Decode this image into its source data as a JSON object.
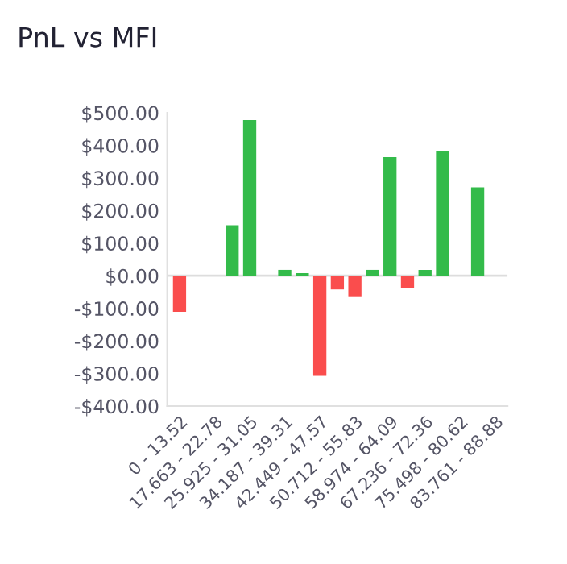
{
  "chart_data": {
    "type": "bar",
    "title": "PnL vs MFI",
    "categories": [
      "0 - 13.52",
      null,
      "17.663 - 22.78",
      null,
      "25.925 - 31.05",
      null,
      "34.187 - 39.31",
      null,
      "42.449 - 47.57",
      null,
      "50.712 - 55.83",
      null,
      "58.974 - 64.09",
      null,
      "67.236 - 72.36",
      null,
      "75.498 - 80.62",
      null,
      "83.761 - 88.88"
    ],
    "values": [
      -111,
      null,
      null,
      155,
      478,
      null,
      18,
      8,
      -307,
      -42,
      -63,
      18,
      364,
      -38,
      18,
      384,
      null,
      271,
      null
    ],
    "colors": [
      "#fa4d4d",
      "#33bb4a",
      "#33bb4a",
      "#33bb4a",
      "#33bb4a",
      "#33bb4a",
      "#33bb4a",
      "#33bb4a",
      "#fa4d4d",
      "#fa4d4d",
      "#fa4d4d",
      "#33bb4a",
      "#33bb4a",
      "#fa4d4d",
      "#33bb4a",
      "#33bb4a",
      "#33bb4a",
      "#33bb4a",
      "#33bb4a"
    ],
    "ylim": [
      -400,
      500
    ],
    "yticks": [
      {
        "value": 500,
        "label": "$500.00"
      },
      {
        "value": 400,
        "label": "$400.00"
      },
      {
        "value": 300,
        "label": "$300.00"
      },
      {
        "value": 200,
        "label": "$200.00"
      },
      {
        "value": 100,
        "label": "$100.00"
      },
      {
        "value": 0,
        "label": "$0.00"
      },
      {
        "value": -100,
        "label": "-$100.00"
      },
      {
        "value": -200,
        "label": "-$200.00"
      },
      {
        "value": -300,
        "label": "-$300.00"
      },
      {
        "value": -400,
        "label": "-$400.00"
      }
    ],
    "ref_lines": [
      {
        "axis": "y",
        "value": 0,
        "color": "#dddddd"
      }
    ],
    "grid": false,
    "legend": false
  }
}
